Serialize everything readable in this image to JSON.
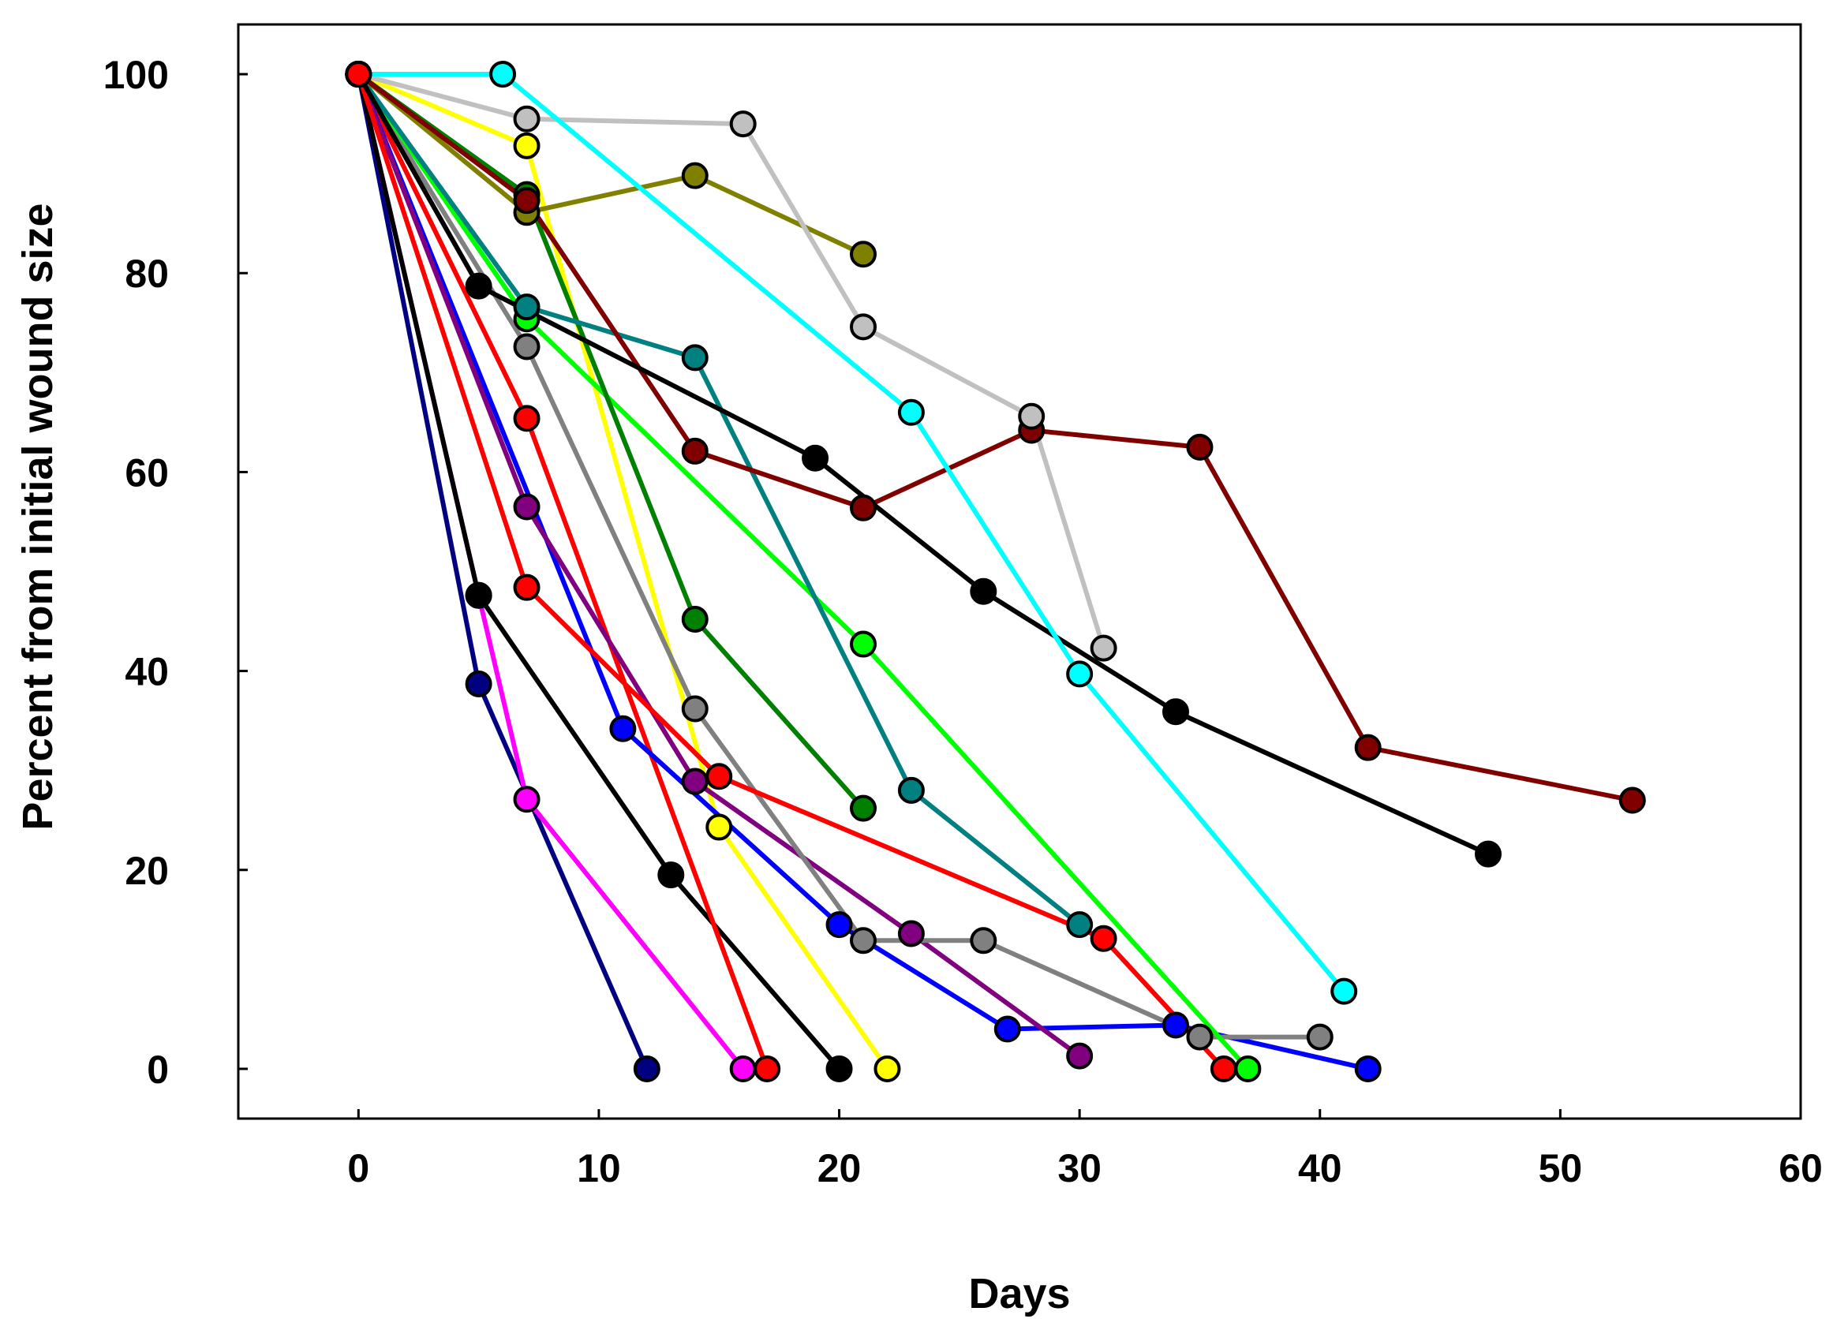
{
  "chart_data": {
    "type": "line",
    "title": "",
    "xlabel": "Days",
    "ylabel": "Percent from initial wound size",
    "xlim": [
      -5,
      60
    ],
    "ylim": [
      -5,
      105
    ],
    "xticks": [
      0,
      10,
      20,
      30,
      40,
      50,
      60
    ],
    "yticks": [
      0,
      20,
      40,
      60,
      80,
      100
    ],
    "grid": false,
    "legend": "none",
    "series": [
      {
        "name": "navy",
        "color": "#000080",
        "points": [
          [
            0,
            100
          ],
          [
            5,
            38.7
          ],
          [
            12,
            0
          ]
        ]
      },
      {
        "name": "magenta",
        "color": "#ff00ff",
        "points": [
          [
            0,
            100
          ],
          [
            5,
            47.6
          ],
          [
            7,
            27.1
          ],
          [
            16,
            0
          ]
        ]
      },
      {
        "name": "black-fast",
        "color": "#000000",
        "points": [
          [
            0,
            100
          ],
          [
            5,
            47.6
          ],
          [
            13,
            19.5
          ],
          [
            20,
            0
          ]
        ]
      },
      {
        "name": "red-fast",
        "color": "#ff0000",
        "points": [
          [
            0,
            100
          ],
          [
            7,
            65.4
          ],
          [
            17,
            0
          ]
        ]
      },
      {
        "name": "yellow",
        "color": "#ffff00",
        "points": [
          [
            0,
            100
          ],
          [
            7,
            92.8
          ],
          [
            15,
            24.3
          ],
          [
            22,
            0
          ]
        ]
      },
      {
        "name": "blue",
        "color": "#0000ff",
        "points": [
          [
            0,
            100
          ],
          [
            11,
            34.2
          ],
          [
            20,
            14.5
          ],
          [
            27,
            4
          ],
          [
            34,
            4.4
          ],
          [
            42,
            0
          ]
        ]
      },
      {
        "name": "purple",
        "color": "#800080",
        "points": [
          [
            0,
            100
          ],
          [
            7,
            56.5
          ],
          [
            14,
            28.9
          ],
          [
            23,
            13.6
          ],
          [
            30,
            1.3
          ]
        ]
      },
      {
        "name": "gray",
        "color": "#808080",
        "points": [
          [
            0,
            100
          ],
          [
            7,
            72.6
          ],
          [
            14,
            36.2
          ],
          [
            21,
            12.9
          ],
          [
            26,
            12.9
          ],
          [
            35,
            3.2
          ],
          [
            40,
            3.2
          ]
        ]
      },
      {
        "name": "red-slow",
        "color": "#ff0000",
        "points": [
          [
            0,
            100
          ],
          [
            7,
            48.4
          ],
          [
            15,
            29.4
          ],
          [
            31,
            13.1
          ],
          [
            36,
            0
          ]
        ]
      },
      {
        "name": "green",
        "color": "#00ff00",
        "points": [
          [
            0,
            100
          ],
          [
            7,
            75.4
          ],
          [
            21,
            42.7
          ],
          [
            37,
            0
          ]
        ]
      },
      {
        "name": "dark-green",
        "color": "#008000",
        "points": [
          [
            0,
            100
          ],
          [
            7,
            87.9
          ],
          [
            14,
            45.2
          ],
          [
            21,
            26.2
          ]
        ]
      },
      {
        "name": "teal",
        "color": "#008080",
        "points": [
          [
            0,
            100
          ],
          [
            7,
            76.6
          ],
          [
            14,
            71.5
          ],
          [
            23,
            28
          ],
          [
            30,
            14.5
          ]
        ]
      },
      {
        "name": "olive",
        "color": "#808000",
        "points": [
          [
            0,
            100
          ],
          [
            7,
            86.1
          ],
          [
            14,
            89.8
          ],
          [
            21,
            81.9
          ]
        ]
      },
      {
        "name": "maroon",
        "color": "#800000",
        "points": [
          [
            0,
            100
          ],
          [
            7,
            87.3
          ],
          [
            14,
            62.1
          ],
          [
            21,
            56.4
          ],
          [
            28,
            64.2
          ],
          [
            35,
            62.5
          ],
          [
            42,
            32.3
          ],
          [
            53,
            27
          ]
        ]
      },
      {
        "name": "black-slow",
        "color": "#000000",
        "points": [
          [
            0,
            100
          ],
          [
            5,
            78.7
          ],
          [
            19,
            61.4
          ],
          [
            26,
            48
          ],
          [
            34,
            35.9
          ],
          [
            47,
            21.6
          ]
        ]
      },
      {
        "name": "light-gray",
        "color": "#c0c0c0",
        "points": [
          [
            0,
            100
          ],
          [
            7,
            95.5
          ],
          [
            16,
            95
          ],
          [
            21,
            74.6
          ],
          [
            28,
            65.6
          ],
          [
            31,
            42.3
          ]
        ]
      },
      {
        "name": "cyan",
        "color": "#00ffff",
        "points": [
          [
            0,
            100
          ],
          [
            6,
            100
          ],
          [
            23,
            66
          ],
          [
            30,
            39.7
          ],
          [
            41,
            7.8
          ]
        ]
      },
      {
        "name": "red-origin",
        "color": "#ff0000",
        "points": [
          [
            0,
            100
          ]
        ]
      }
    ]
  }
}
